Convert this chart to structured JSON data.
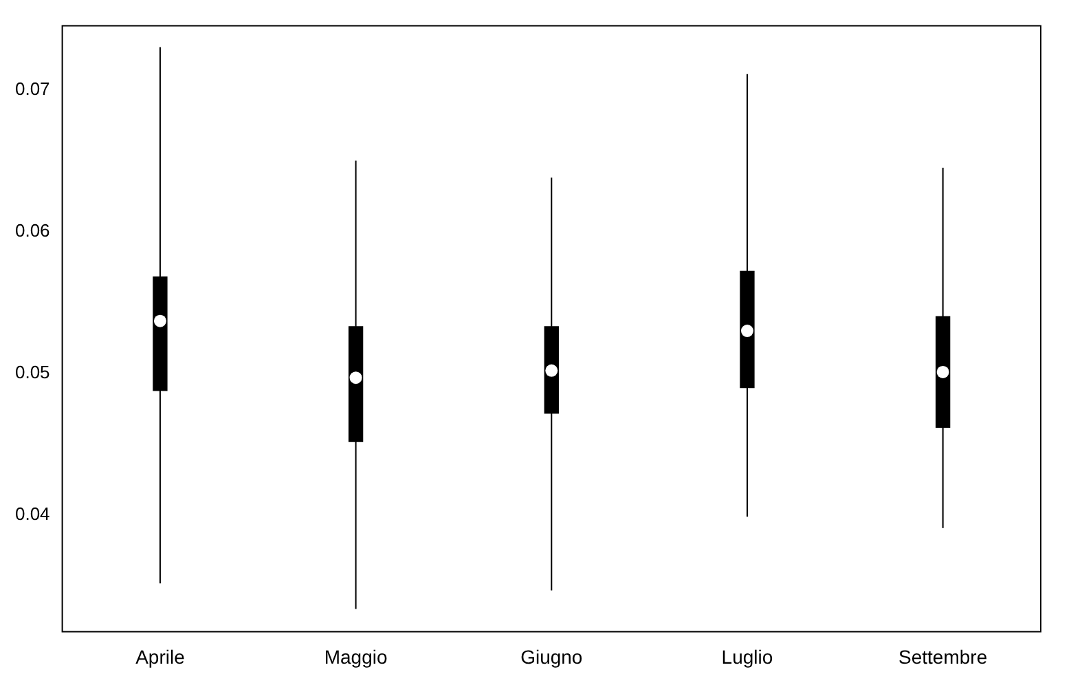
{
  "chart_data": {
    "type": "box",
    "categories": [
      "Aprile",
      "Maggio",
      "Giugno",
      "Luglio",
      "Settembre"
    ],
    "boxes": [
      {
        "low": 0.0352,
        "q1": 0.0488,
        "median": 0.0537,
        "q3": 0.0568,
        "high": 0.073
      },
      {
        "low": 0.0334,
        "q1": 0.0452,
        "median": 0.0497,
        "q3": 0.0533,
        "high": 0.065
      },
      {
        "low": 0.0347,
        "q1": 0.0472,
        "median": 0.0502,
        "q3": 0.0533,
        "high": 0.0638
      },
      {
        "low": 0.0399,
        "q1": 0.049,
        "median": 0.053,
        "q3": 0.0572,
        "high": 0.0711
      },
      {
        "low": 0.0391,
        "q1": 0.0462,
        "median": 0.0501,
        "q3": 0.054,
        "high": 0.0645
      }
    ],
    "ylim": [
      0.0318,
      0.0745
    ],
    "yticks": [
      0.04,
      0.05,
      0.06,
      0.07
    ]
  }
}
